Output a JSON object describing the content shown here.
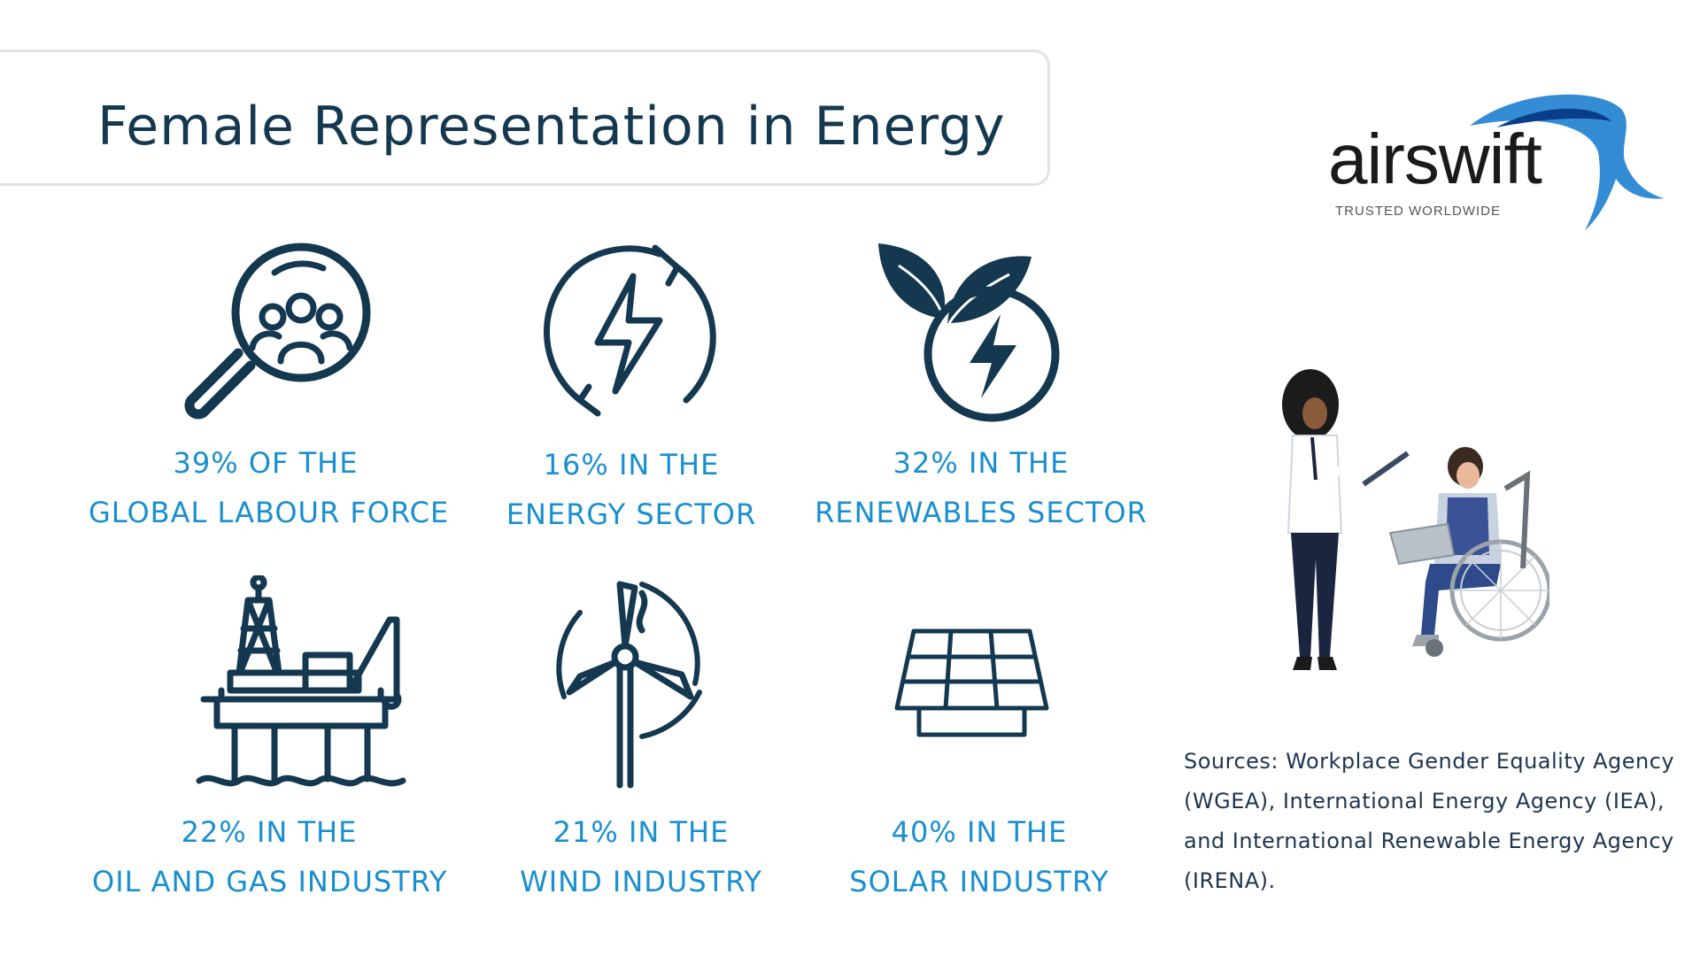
{
  "title": "Female Representation in Energy",
  "brand": {
    "name": "airswift",
    "tagline": "TRUSTED WORLDWIDE",
    "accent_color": "#1e7fd0"
  },
  "colors": {
    "title": "#14384f",
    "stat_text": "#1a8fcf",
    "icon": "#14384f"
  },
  "stats": [
    {
      "line1": "39% OF THE",
      "line2": "GLOBAL LABOUR FORCE",
      "icon": "magnifier-people-icon"
    },
    {
      "line1": "16% IN THE",
      "line2": "ENERGY SECTOR",
      "icon": "energy-cycle-icon"
    },
    {
      "line1": "32% IN THE",
      "line2": "RENEWABLES SECTOR",
      "icon": "leaf-energy-icon"
    },
    {
      "line1": "22% IN THE",
      "line2": "OIL AND GAS INDUSTRY",
      "icon": "oil-rig-icon"
    },
    {
      "line1": "21% IN THE",
      "line2": "WIND INDUSTRY",
      "icon": "wind-turbine-icon"
    },
    {
      "line1": "40% IN THE",
      "line2": "SOLAR INDUSTRY",
      "icon": "solar-panel-icon"
    }
  ],
  "illustration": "two-women-working-illustration",
  "sources": "Sources: Workplace Gender Equality Agency (WGEA), International Energy Agency (IEA), and International Renewable Energy Agency (IRENA)."
}
